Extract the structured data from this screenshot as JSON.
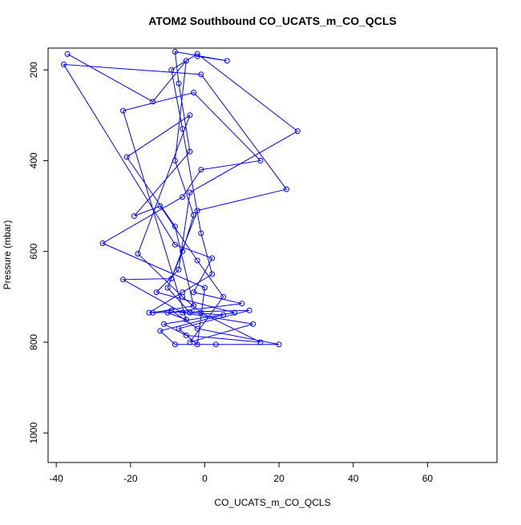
{
  "chart_data": {
    "type": "line",
    "title": "ATOM2 Southbound CO_UCATS_m_CO_QCLS",
    "x_label": "CO_UCATS_m_CO_QCLS",
    "y_label": "Pressure (mbar)",
    "xlim": [
      -42.2,
      78.7
    ],
    "xticks": [
      -40,
      -20,
      0,
      20,
      40,
      60
    ],
    "ylim": [
      1065,
      152
    ],
    "yticks": [
      200,
      400,
      600,
      800,
      1000
    ],
    "series": [
      {
        "name": "CO_UCATS_m_CO_QCLS",
        "color": "#0000ff",
        "x": [
          -37,
          -14,
          -5,
          -8,
          -3,
          -6,
          -10,
          -4,
          5,
          -12,
          -8,
          3,
          20,
          -2,
          -9,
          -15,
          -6,
          2,
          -1,
          -6,
          -9,
          -2,
          25,
          -4,
          -7,
          -13,
          8,
          -11,
          -5,
          15,
          -1,
          -6,
          -18,
          -4,
          -21,
          -8,
          -3,
          -14,
          12,
          -7,
          -2,
          0,
          -27.5,
          -6,
          -1,
          15,
          -3,
          -22,
          -5,
          -10,
          10,
          -3,
          2,
          -8,
          -38,
          -1,
          22,
          -2,
          -9,
          -22,
          -6,
          13,
          -4,
          5,
          -2,
          -12,
          -19,
          -4,
          -7,
          -8,
          6,
          -2
        ],
        "values": [
          165,
          270,
          180,
          400,
          520,
          600,
          680,
          735,
          740,
          775,
          805,
          805,
          805,
          770,
          730,
          735,
          690,
          650,
          560,
          330,
          200,
          165,
          335,
          470,
          640,
          690,
          735,
          760,
          785,
          800,
          735,
          700,
          605,
          300,
          392,
          545,
          720,
          735,
          730,
          770,
          805,
          680,
          582,
          480,
          420,
          400,
          250,
          290,
          750,
          735,
          715,
          690,
          615,
          585,
          188,
          210,
          463,
          510,
          660,
          662,
          735,
          760,
          800,
          700,
          620,
          500,
          522,
          380,
          230,
          160,
          180,
          170
        ]
      }
    ]
  }
}
